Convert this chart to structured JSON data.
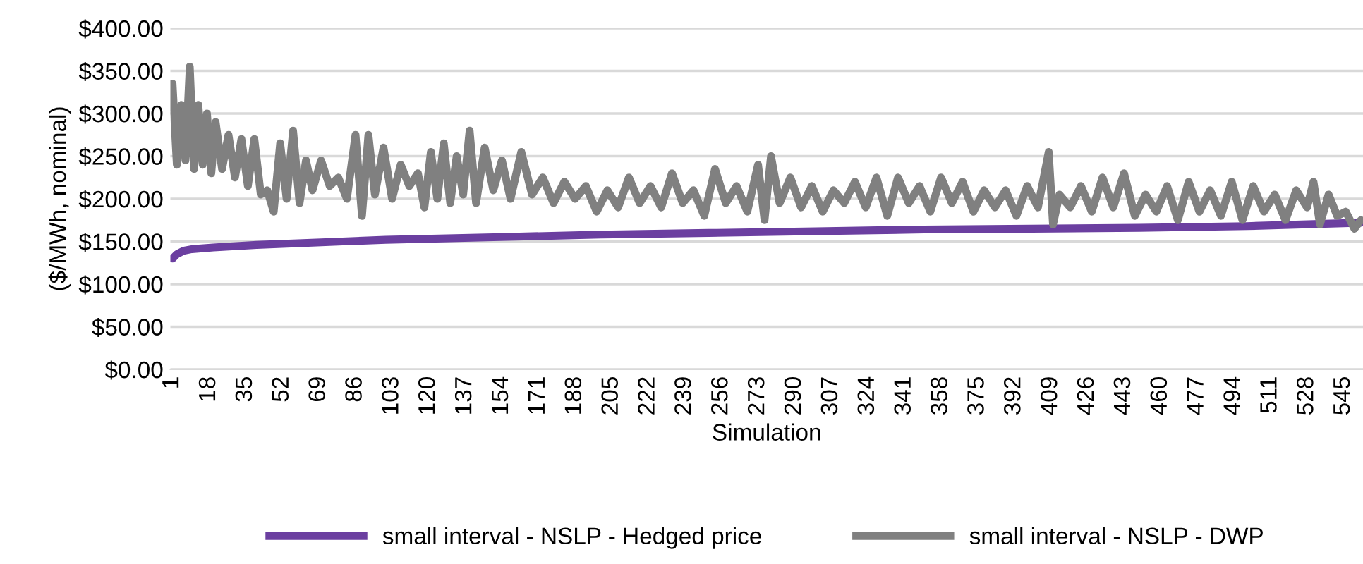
{
  "chart_data": {
    "type": "line",
    "xlabel": "Simulation",
    "ylabel": "($/MWh, nominal)",
    "xlim": [
      0,
      554
    ],
    "xticks": [
      1,
      18,
      35,
      52,
      69,
      86,
      103,
      120,
      137,
      154,
      171,
      188,
      205,
      222,
      239,
      256,
      273,
      290,
      307,
      324,
      341,
      358,
      375,
      392,
      409,
      426,
      443,
      460,
      477,
      494,
      511,
      528,
      545
    ],
    "ylim": [
      0,
      400
    ],
    "yticks": [
      {
        "value": 0,
        "label": "$0.00"
      },
      {
        "value": 50,
        "label": "$50.00"
      },
      {
        "value": 100,
        "label": "$100.00"
      },
      {
        "value": 150,
        "label": "$150.00"
      },
      {
        "value": 200,
        "label": "$200.00"
      },
      {
        "value": 250,
        "label": "$250.00"
      },
      {
        "value": 300,
        "label": "$300.00"
      },
      {
        "value": 350,
        "label": "$350.00"
      },
      {
        "value": 400,
        "label": "$400.00"
      }
    ],
    "grid": "y",
    "legend": "bottom",
    "marker": "none",
    "line_style": "solid",
    "series": [
      {
        "name": "small interval - NSLP - Hedged price",
        "color": "#6b3fa0",
        "x": [
          1,
          3,
          6,
          10,
          20,
          40,
          70,
          100,
          150,
          200,
          250,
          300,
          350,
          400,
          450,
          500,
          553
        ],
        "values": [
          130,
          135,
          139,
          141,
          143,
          146,
          149,
          152,
          155,
          158,
          160,
          162,
          164,
          165,
          166,
          168,
          172
        ]
      },
      {
        "name": "small interval - NSLP - DWP",
        "color": "#808080",
        "x": [
          1,
          3,
          5,
          7,
          9,
          11,
          13,
          15,
          17,
          19,
          21,
          24,
          27,
          30,
          33,
          36,
          39,
          42,
          45,
          48,
          51,
          54,
          57,
          60,
          63,
          66,
          70,
          74,
          78,
          82,
          86,
          89,
          92,
          95,
          99,
          103,
          107,
          111,
          115,
          118,
          121,
          124,
          127,
          130,
          133,
          136,
          139,
          142,
          146,
          150,
          154,
          158,
          163,
          168,
          173,
          178,
          183,
          188,
          193,
          198,
          203,
          208,
          213,
          218,
          223,
          228,
          233,
          238,
          243,
          248,
          253,
          258,
          263,
          268,
          273,
          276,
          279,
          283,
          288,
          293,
          298,
          303,
          308,
          313,
          318,
          323,
          328,
          333,
          338,
          343,
          348,
          353,
          358,
          363,
          368,
          373,
          378,
          383,
          388,
          393,
          398,
          403,
          408,
          410,
          413,
          418,
          423,
          428,
          433,
          438,
          443,
          448,
          453,
          458,
          463,
          468,
          473,
          478,
          483,
          488,
          493,
          498,
          503,
          508,
          513,
          518,
          523,
          528,
          531,
          534,
          538,
          542,
          546,
          550,
          553
        ],
        "values": [
          335,
          240,
          310,
          245,
          355,
          235,
          310,
          240,
          300,
          230,
          290,
          235,
          275,
          225,
          270,
          215,
          270,
          205,
          210,
          185,
          265,
          200,
          280,
          195,
          245,
          210,
          245,
          215,
          225,
          200,
          275,
          180,
          275,
          205,
          260,
          200,
          240,
          215,
          230,
          190,
          255,
          200,
          265,
          195,
          250,
          205,
          280,
          195,
          260,
          210,
          245,
          200,
          255,
          205,
          225,
          195,
          220,
          200,
          215,
          185,
          210,
          190,
          225,
          195,
          215,
          190,
          230,
          195,
          210,
          180,
          235,
          195,
          215,
          185,
          240,
          175,
          250,
          195,
          225,
          190,
          215,
          185,
          210,
          195,
          220,
          190,
          225,
          180,
          225,
          195,
          215,
          185,
          225,
          195,
          220,
          185,
          210,
          190,
          210,
          180,
          215,
          190,
          255,
          170,
          205,
          190,
          215,
          185,
          225,
          190,
          230,
          180,
          205,
          185,
          215,
          175,
          220,
          185,
          210,
          180,
          220,
          175,
          215,
          185,
          205,
          175,
          210,
          190,
          220,
          170,
          205,
          180,
          185,
          165,
          175
        ]
      }
    ]
  }
}
